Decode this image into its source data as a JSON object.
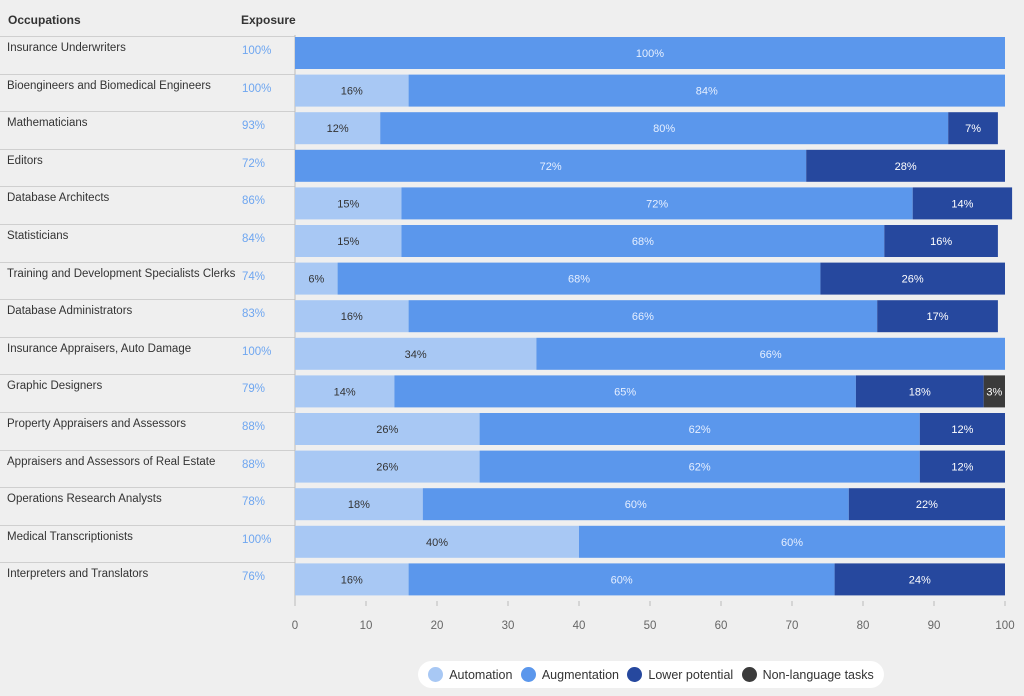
{
  "headers": {
    "occupations": "Occupations",
    "exposure": "Exposure"
  },
  "colors": {
    "Automation": "#a8c8f4",
    "Augmentation": "#5b97ec",
    "Lower potential": "#26489e",
    "Non-language tasks": "#3b3b3b"
  },
  "chart_data": {
    "type": "bar",
    "orientation": "horizontal",
    "stacked": true,
    "categories": [
      "Insurance Underwriters",
      "Bioengineers and Biomedical Engineers",
      "Mathematicians",
      "Editors",
      "Database Architects",
      "Statisticians",
      "Training and Development Specialists Clerks",
      "Database Administrators",
      "Insurance Appraisers, Auto Damage",
      "Graphic Designers",
      "Property Appraisers and Assessors",
      "Appraisers and Assessors of Real Estate",
      "Operations Research Analysts",
      "Medical Transcriptionists",
      "Interpreters and Translators"
    ],
    "exposure": [
      "100%",
      "100%",
      "93%",
      "72%",
      "86%",
      "84%",
      "74%",
      "83%",
      "100%",
      "79%",
      "88%",
      "88%",
      "78%",
      "100%",
      "76%"
    ],
    "series": [
      {
        "name": "Automation",
        "values": [
          0,
          16,
          12,
          0,
          15,
          15,
          6,
          16,
          34,
          14,
          26,
          26,
          18,
          40,
          16
        ]
      },
      {
        "name": "Augmentation",
        "values": [
          100,
          84,
          80,
          72,
          72,
          68,
          68,
          66,
          66,
          65,
          62,
          62,
          60,
          60,
          60
        ]
      },
      {
        "name": "Lower potential",
        "values": [
          0,
          0,
          7,
          28,
          14,
          16,
          26,
          17,
          0,
          18,
          12,
          12,
          22,
          0,
          24
        ]
      },
      {
        "name": "Non-language tasks",
        "values": [
          0,
          0,
          0,
          0,
          0,
          0,
          0,
          0,
          0,
          3,
          0,
          0,
          0,
          0,
          0
        ]
      }
    ],
    "xlim": [
      0,
      100
    ],
    "xticks": [
      0,
      10,
      20,
      30,
      40,
      50,
      60,
      70,
      80,
      90,
      100
    ],
    "legend": [
      "Automation",
      "Augmentation",
      "Lower potential",
      "Non-language tasks"
    ],
    "legend_position": "bottom"
  }
}
